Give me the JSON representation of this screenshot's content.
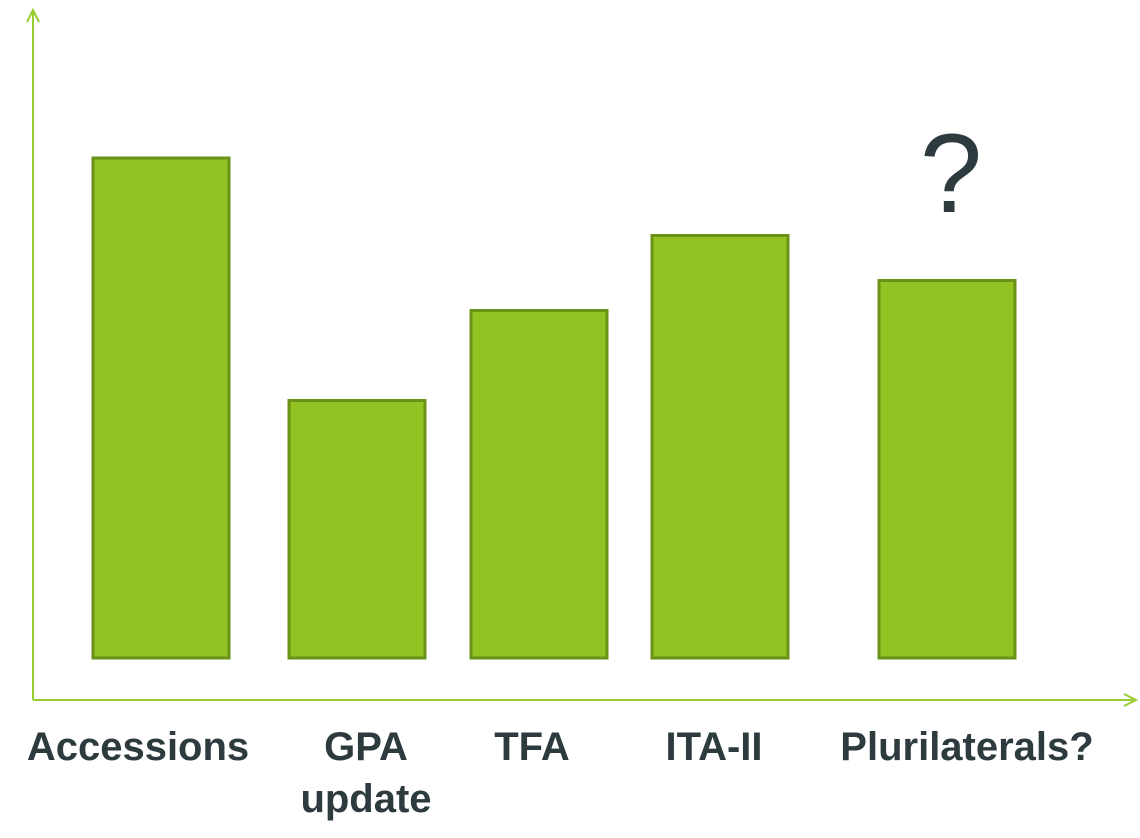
{
  "chart_data": {
    "type": "bar",
    "categories": [
      [
        "Accessions"
      ],
      [
        "GPA",
        "update"
      ],
      [
        "TFA"
      ],
      [
        "ITA-II"
      ],
      [
        "Plurilaterals?"
      ]
    ],
    "values": [
      100,
      51.5,
      69.5,
      84.5,
      75.5
    ],
    "ylim": [
      0,
      125
    ],
    "grid": false,
    "legend": "none",
    "annotations": [
      {
        "text": "?",
        "category_index": 4
      }
    ],
    "colors": {
      "bar_fill": "#93c225",
      "bar_stroke": "#6a9118",
      "axis": "#9acd32",
      "text": "#2d3b3f"
    }
  }
}
